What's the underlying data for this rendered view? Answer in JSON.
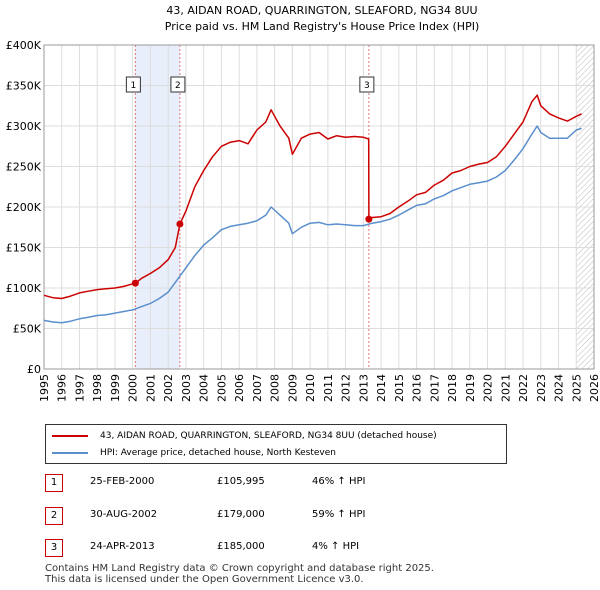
{
  "chart_data": {
    "type": "line",
    "title": "43, AIDAN ROAD, QUARRINGTON, SLEAFORD, NG34 8UU",
    "subtitle": "Price paid vs. HM Land Registry's House Price Index (HPI)",
    "xlabel": "",
    "ylabel": "",
    "xlim": [
      1995,
      2026
    ],
    "ylim": [
      0,
      400000
    ],
    "x_ticks": [
      "1995",
      "1996",
      "1997",
      "1998",
      "1999",
      "2000",
      "2001",
      "2002",
      "2003",
      "2004",
      "2005",
      "2006",
      "2007",
      "2008",
      "2009",
      "2010",
      "2011",
      "2012",
      "2013",
      "2014",
      "2015",
      "2016",
      "2017",
      "2018",
      "2019",
      "2020",
      "2021",
      "2022",
      "2023",
      "2024",
      "2025",
      "2026"
    ],
    "y_ticks": [
      {
        "value": 0,
        "label": "£0"
      },
      {
        "value": 50000,
        "label": "£50K"
      },
      {
        "value": 100000,
        "label": "£100K"
      },
      {
        "value": 150000,
        "label": "£150K"
      },
      {
        "value": 200000,
        "label": "£200K"
      },
      {
        "value": 250000,
        "label": "£250K"
      },
      {
        "value": 300000,
        "label": "£300K"
      },
      {
        "value": 350000,
        "label": "£350K"
      },
      {
        "value": 400000,
        "label": "£400K"
      }
    ],
    "grid": true,
    "shaded_regions": [
      [
        2000.15,
        2002.66
      ]
    ],
    "future_hatch_from": 2025.0,
    "colors": {
      "property": "#cc0000",
      "hpi": "#5b8fcc",
      "shade": "#e8eefa",
      "grid": "#dddddd",
      "marker_line": "#dd7777"
    },
    "series": [
      {
        "name": "43, AIDAN ROAD, QUARRINGTON, SLEAFORD, NG34 8UU (detached house)",
        "color": "#cc0000",
        "x": [
          1995.0,
          1995.5,
          1996.0,
          1996.5,
          1997.0,
          1997.5,
          1998.0,
          1998.5,
          1999.0,
          1999.5,
          2000.15,
          2000.5,
          2001.0,
          2001.5,
          2002.0,
          2002.4,
          2002.66,
          2003.0,
          2003.5,
          2004.0,
          2004.5,
          2005.0,
          2005.5,
          2006.0,
          2006.5,
          2007.0,
          2007.5,
          2007.8,
          2008.3,
          2008.8,
          2009.0,
          2009.5,
          2010.0,
          2010.5,
          2011.0,
          2011.5,
          2012.0,
          2012.5,
          2013.0,
          2013.3,
          2013.31,
          2013.5,
          2014.0,
          2014.5,
          2015.0,
          2015.5,
          2016.0,
          2016.5,
          2017.0,
          2017.5,
          2018.0,
          2018.5,
          2019.0,
          2019.5,
          2020.0,
          2020.5,
          2021.0,
          2021.5,
          2022.0,
          2022.5,
          2022.8,
          2023.0,
          2023.5,
          2024.0,
          2024.5,
          2025.0,
          2025.3
        ],
        "y": [
          91000,
          88000,
          87000,
          90000,
          94000,
          96000,
          98000,
          99000,
          100000,
          102000,
          105995,
          112000,
          118000,
          125000,
          135000,
          150000,
          179000,
          195000,
          225000,
          245000,
          262000,
          275000,
          280000,
          282000,
          278000,
          295000,
          305000,
          320000,
          300000,
          285000,
          265000,
          285000,
          290000,
          292000,
          284000,
          288000,
          286000,
          287000,
          286000,
          284000,
          185000,
          187000,
          188000,
          192000,
          200000,
          207000,
          215000,
          218000,
          227000,
          233000,
          242000,
          245000,
          250000,
          253000,
          255000,
          262000,
          275000,
          290000,
          305000,
          330000,
          338000,
          325000,
          315000,
          310000,
          306000,
          312000,
          315000
        ]
      },
      {
        "name": "HPI: Average price, detached house, North Kesteven",
        "color": "#5b8fcc",
        "x": [
          1995.0,
          1995.5,
          1996.0,
          1996.5,
          1997.0,
          1997.5,
          1998.0,
          1998.5,
          1999.0,
          1999.5,
          2000.0,
          2000.5,
          2001.0,
          2001.5,
          2002.0,
          2002.5,
          2003.0,
          2003.5,
          2004.0,
          2004.5,
          2005.0,
          2005.5,
          2006.0,
          2006.5,
          2007.0,
          2007.5,
          2007.8,
          2008.3,
          2008.8,
          2009.0,
          2009.5,
          2010.0,
          2010.5,
          2011.0,
          2011.5,
          2012.0,
          2012.5,
          2013.0,
          2013.5,
          2014.0,
          2014.5,
          2015.0,
          2015.5,
          2016.0,
          2016.5,
          2017.0,
          2017.5,
          2018.0,
          2018.5,
          2019.0,
          2019.5,
          2020.0,
          2020.5,
          2021.0,
          2021.5,
          2022.0,
          2022.5,
          2022.8,
          2023.0,
          2023.5,
          2024.0,
          2024.5,
          2025.0,
          2025.3
        ],
        "y": [
          60000,
          58000,
          57000,
          59000,
          62000,
          64000,
          66000,
          67000,
          69000,
          71000,
          73000,
          77000,
          81000,
          87000,
          95000,
          110000,
          125000,
          140000,
          153000,
          162000,
          172000,
          176000,
          178000,
          180000,
          183000,
          190000,
          200000,
          190000,
          180000,
          167000,
          175000,
          180000,
          181000,
          178000,
          179000,
          178000,
          177000,
          177000,
          180000,
          182000,
          185000,
          190000,
          196000,
          202000,
          204000,
          210000,
          214000,
          220000,
          224000,
          228000,
          230000,
          232000,
          237000,
          245000,
          258000,
          272000,
          290000,
          300000,
          292000,
          285000,
          285000,
          285000,
          295000,
          297000
        ]
      }
    ],
    "sales": [
      {
        "num": "1",
        "x": 2000.15,
        "y": 105995
      },
      {
        "num": "2",
        "x": 2002.66,
        "y": 179000
      },
      {
        "num": "3",
        "x": 2013.31,
        "y": 185000
      }
    ]
  },
  "legend": {
    "property_label": "43, AIDAN ROAD, QUARRINGTON, SLEAFORD, NG34 8UU (detached house)",
    "hpi_label": "HPI: Average price, detached house, North Kesteven"
  },
  "transactions": [
    {
      "num": "1",
      "date": "25-FEB-2000",
      "price": "£105,995",
      "hpi": "46% ↑ HPI"
    },
    {
      "num": "2",
      "date": "30-AUG-2002",
      "price": "£179,000",
      "hpi": "59% ↑ HPI"
    },
    {
      "num": "3",
      "date": "24-APR-2013",
      "price": "£185,000",
      "hpi": "4% ↑ HPI"
    }
  ],
  "footer": {
    "line1": "Contains HM Land Registry data © Crown copyright and database right 2025.",
    "line2": "This data is licensed under the Open Government Licence v3.0."
  }
}
